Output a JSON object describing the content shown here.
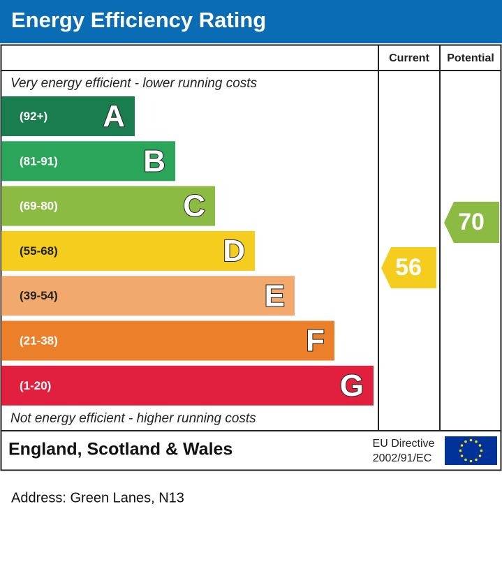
{
  "title": "Energy Efficiency Rating",
  "headers": {
    "current": "Current",
    "potential": "Potential"
  },
  "top_note": "Very energy efficient - lower running costs",
  "bands": [
    {
      "range": "(92+)",
      "letter": "A",
      "color": "#1a7d50"
    },
    {
      "range": "(81-91)",
      "letter": "B",
      "color": "#2aa55a"
    },
    {
      "range": "(69-80)",
      "letter": "C",
      "color": "#8cbb44"
    },
    {
      "range": "(55-68)",
      "letter": "D",
      "color": "#f5cd1f"
    },
    {
      "range": "(39-54)",
      "letter": "E",
      "color": "#f2a96e"
    },
    {
      "range": "(21-38)",
      "letter": "F",
      "color": "#ec7f2a"
    },
    {
      "range": "(1-20)",
      "letter": "G",
      "color": "#e0203c"
    }
  ],
  "current": {
    "value": 56,
    "color": "#f5cd1f"
  },
  "potential": {
    "value": 70,
    "color": "#8cbb44"
  },
  "bottom_note": "Not energy efficient - higher running costs",
  "footer": {
    "region": "England, Scotland & Wales",
    "directive": [
      "EU Directive",
      "2002/91/EC"
    ]
  },
  "address": "Address: Green Lanes, N13"
}
